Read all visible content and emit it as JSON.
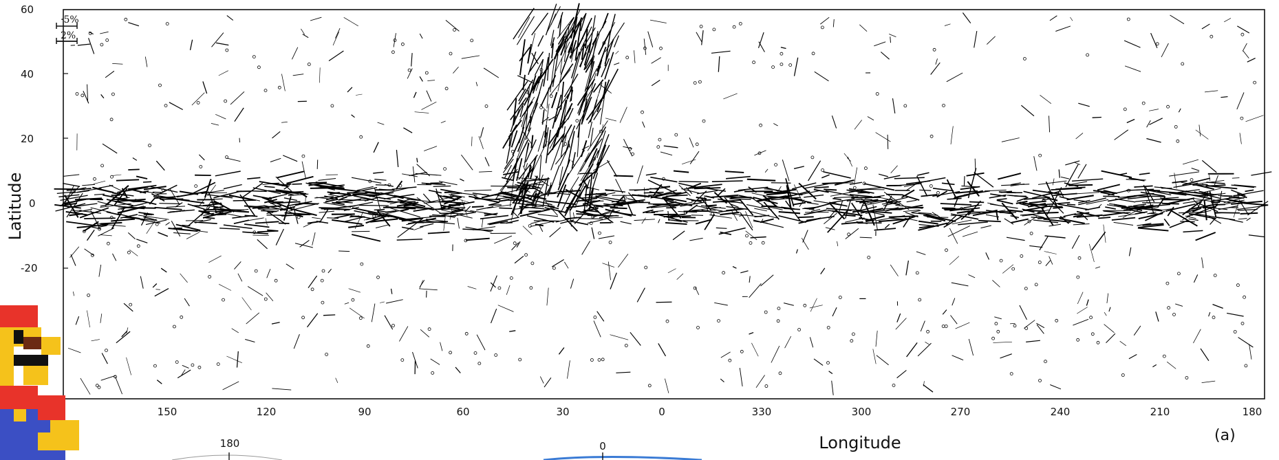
{
  "figure": {
    "x_axis_title": "Longitude",
    "y_axis_title": "Latitude",
    "panel_label": "(a)",
    "x_tick_labels": [
      "150",
      "120",
      "90",
      "60",
      "30",
      "0",
      "330",
      "300",
      "270",
      "240",
      "210",
      "180"
    ],
    "y_tick_labels": [
      "60",
      "40",
      "20",
      "0",
      "-20"
    ],
    "scale_bar_labels": [
      "·5%",
      "2%"
    ],
    "lower_panel_labels": [
      "180",
      "0"
    ],
    "vector_color": "#000000",
    "lower_arc_color": "#3a7bd5"
  }
}
